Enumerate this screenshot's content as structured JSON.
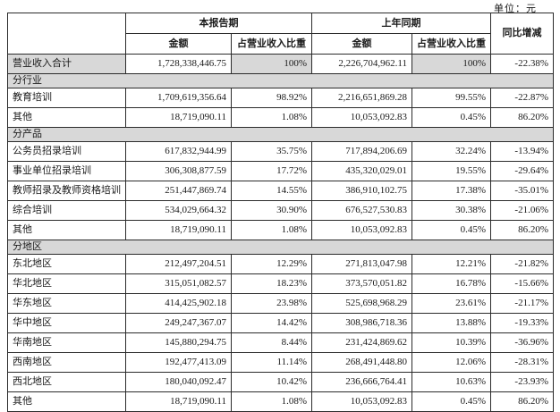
{
  "unit_label": "单位：元",
  "table": {
    "headers": {
      "current_period": "本报告期",
      "prior_period": "上年同期",
      "yoy_change": "同比增减",
      "amount": "金额",
      "pct_of_revenue": "占营业收入比重"
    },
    "total_row": {
      "label": "营业收入合计",
      "cur_amount": "1,728,338,446.75",
      "cur_pct": "100%",
      "prior_amount": "2,226,704,962.11",
      "prior_pct": "100%",
      "yoy": "-22.38%"
    },
    "sections": [
      {
        "title": "分行业",
        "rows": [
          {
            "label": "教育培训",
            "cur_amount": "1,709,619,356.64",
            "cur_pct": "98.92%",
            "prior_amount": "2,216,651,869.28",
            "prior_pct": "99.55%",
            "yoy": "-22.87%"
          },
          {
            "label": "其他",
            "cur_amount": "18,719,090.11",
            "cur_pct": "1.08%",
            "prior_amount": "10,053,092.83",
            "prior_pct": "0.45%",
            "yoy": "86.20%"
          }
        ]
      },
      {
        "title": "分产品",
        "rows": [
          {
            "label": "公务员招录培训",
            "cur_amount": "617,832,944.99",
            "cur_pct": "35.75%",
            "prior_amount": "717,894,206.69",
            "prior_pct": "32.24%",
            "yoy": "-13.94%"
          },
          {
            "label": "事业单位招录培训",
            "cur_amount": "306,308,877.59",
            "cur_pct": "17.72%",
            "prior_amount": "435,320,029.01",
            "prior_pct": "19.55%",
            "yoy": "-29.64%"
          },
          {
            "label": "教师招录及教师资格培训",
            "cur_amount": "251,447,869.74",
            "cur_pct": "14.55%",
            "prior_amount": "386,910,102.75",
            "prior_pct": "17.38%",
            "yoy": "-35.01%"
          },
          {
            "label": "综合培训",
            "cur_amount": "534,029,664.32",
            "cur_pct": "30.90%",
            "prior_amount": "676,527,530.83",
            "prior_pct": "30.38%",
            "yoy": "-21.06%"
          },
          {
            "label": "其他",
            "cur_amount": "18,719,090.11",
            "cur_pct": "1.08%",
            "prior_amount": "10,053,092.83",
            "prior_pct": "0.45%",
            "yoy": "86.20%"
          }
        ]
      },
      {
        "title": "分地区",
        "rows": [
          {
            "label": "东北地区",
            "cur_amount": "212,497,204.51",
            "cur_pct": "12.29%",
            "prior_amount": "271,813,047.98",
            "prior_pct": "12.21%",
            "yoy": "-21.82%"
          },
          {
            "label": "华北地区",
            "cur_amount": "315,051,082.57",
            "cur_pct": "18.23%",
            "prior_amount": "373,570,051.82",
            "prior_pct": "16.78%",
            "yoy": "-15.66%"
          },
          {
            "label": "华东地区",
            "cur_amount": "414,425,902.18",
            "cur_pct": "23.98%",
            "prior_amount": "525,698,968.29",
            "prior_pct": "23.61%",
            "yoy": "-21.17%"
          },
          {
            "label": "华中地区",
            "cur_amount": "249,247,367.07",
            "cur_pct": "14.42%",
            "prior_amount": "308,986,718.36",
            "prior_pct": "13.88%",
            "yoy": "-19.33%"
          },
          {
            "label": "华南地区",
            "cur_amount": "145,880,294.75",
            "cur_pct": "8.44%",
            "prior_amount": "231,424,869.62",
            "prior_pct": "10.39%",
            "yoy": "-36.96%"
          },
          {
            "label": "西南地区",
            "cur_amount": "192,477,413.09",
            "cur_pct": "11.14%",
            "prior_amount": "268,491,448.80",
            "prior_pct": "12.06%",
            "yoy": "-28.31%"
          },
          {
            "label": "西北地区",
            "cur_amount": "180,040,092.47",
            "cur_pct": "10.42%",
            "prior_amount": "236,666,764.41",
            "prior_pct": "10.63%",
            "yoy": "-23.93%"
          },
          {
            "label": "其他",
            "cur_amount": "18,719,090.11",
            "cur_pct": "1.08%",
            "prior_amount": "10,053,092.83",
            "prior_pct": "0.45%",
            "yoy": "86.20%"
          }
        ]
      }
    ]
  },
  "colors": {
    "shaded_cell": "#d8d8d8",
    "border": "#2b2b2b",
    "text": "#1a1a1a",
    "background": "#ffffff"
  }
}
